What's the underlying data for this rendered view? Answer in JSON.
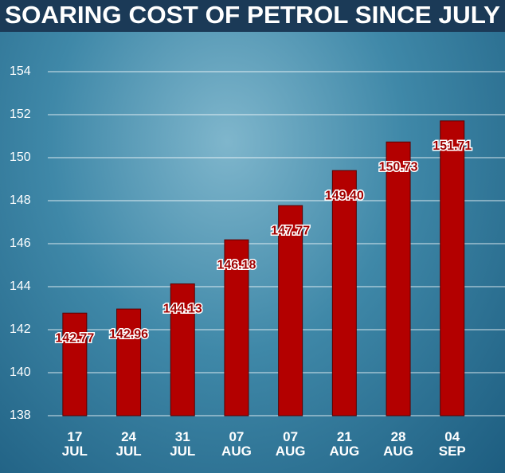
{
  "chart_data": {
    "type": "bar",
    "title": "SOARING COST OF PETROL SINCE JULY",
    "categories": [
      "17 JUL",
      "24 JUL",
      "31 JUL",
      "07 AUG",
      "07 AUG",
      "21 AUG",
      "28 AUG",
      "04 SEP"
    ],
    "values": [
      142.77,
      142.96,
      144.13,
      146.18,
      147.77,
      149.4,
      150.73,
      151.71
    ],
    "value_labels": [
      "142.77",
      "142.96",
      "144.13",
      "146.18",
      "147.77",
      "149.40",
      "150.73",
      "151.71"
    ],
    "color": "#b30000",
    "ylim": [
      138,
      154
    ],
    "yticks": [
      138,
      140,
      142,
      144,
      146,
      148,
      150,
      152,
      154
    ],
    "grid": true
  }
}
